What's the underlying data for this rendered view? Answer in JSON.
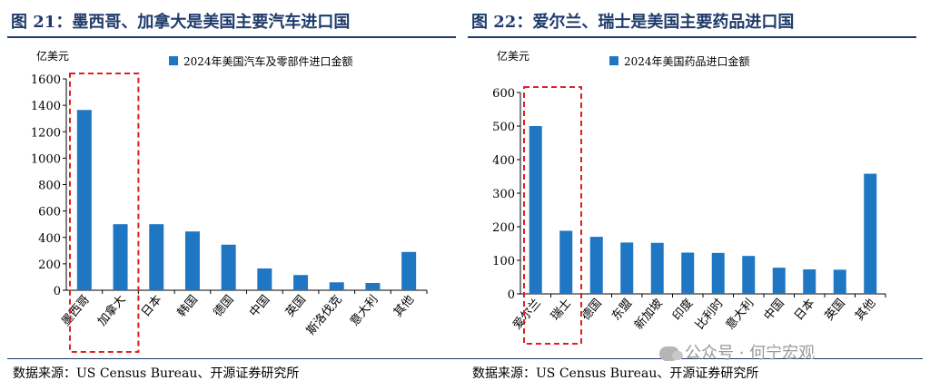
{
  "figures": [
    {
      "title": "图 21：墨西哥、加拿大是美国主要汽车进口国",
      "source": "数据来源：US Census Bureau、开源证券研究所"
    },
    {
      "title": "图 22：爱尔兰、瑞士是美国主要药品进口国",
      "source": "数据来源：US Census Bureau、开源证券研究所"
    }
  ],
  "watermark": "公众号 · 何宁宏观",
  "colors": {
    "bar": "#1f77c4",
    "highlight": "#e02020",
    "title": "#1f3b6b"
  },
  "chart_data": [
    {
      "type": "bar",
      "ylabel": "亿美元",
      "legend": "2024年美国汽车及零部件进口金额",
      "legend_position": "top",
      "categories": [
        "墨西哥",
        "加拿大",
        "日本",
        "韩国",
        "德国",
        "中国",
        "英国",
        "斯洛伐克",
        "意大利",
        "其他"
      ],
      "values": [
        1365,
        500,
        500,
        445,
        345,
        165,
        115,
        60,
        55,
        290
      ],
      "ylim": [
        0,
        1600
      ],
      "yticks": [
        "0",
        "200",
        "400",
        "600",
        "800",
        "1000",
        "1200",
        "1400",
        "1600"
      ],
      "highlight_categories": [
        "墨西哥",
        "加拿大"
      ],
      "grid": false
    },
    {
      "type": "bar",
      "ylabel": "亿美元",
      "legend": "2024年美国药品进口金额",
      "legend_position": "top",
      "categories": [
        "爱尔兰",
        "瑞士",
        "德国",
        "东盟",
        "新加坡",
        "印度",
        "比利时",
        "意大利",
        "中国",
        "日本",
        "英国",
        "其他"
      ],
      "values": [
        500,
        188,
        170,
        153,
        152,
        123,
        122,
        113,
        78,
        73,
        72,
        358
      ],
      "ylim": [
        0,
        600
      ],
      "yticks": [
        "0",
        "100",
        "200",
        "300",
        "400",
        "500",
        "600"
      ],
      "highlight_categories": [
        "爱尔兰",
        "瑞士"
      ],
      "grid": false
    }
  ]
}
